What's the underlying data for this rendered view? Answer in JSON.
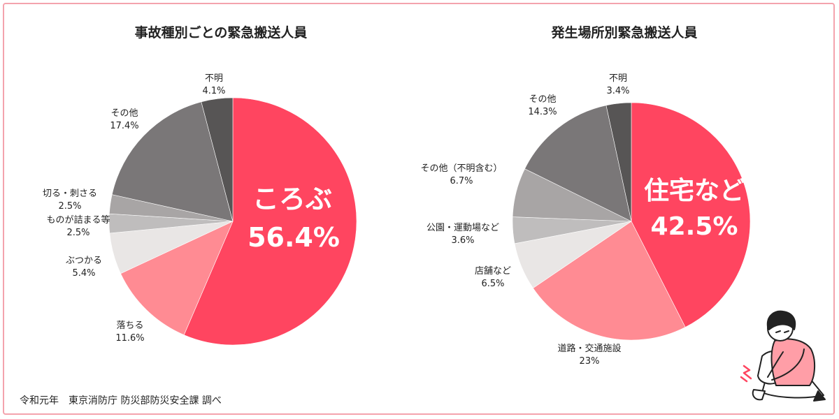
{
  "charts": {
    "left": {
      "title": "事故種別ごとの緊急搬送人員",
      "highlight": {
        "label": "ころぶ",
        "value": "56.4%"
      }
    },
    "right": {
      "title": "発生場所別緊急搬送人員",
      "highlight": {
        "label": "住宅など",
        "value": "42.5%"
      }
    }
  },
  "source": "令和元年　東京消防庁 防災部防災安全課 調べ",
  "colors": {
    "frame": "#f4a3ad",
    "primary": "#ff4560",
    "secondary": "#ff8b93",
    "light": "#e9e6e5",
    "silver": "#bfbdbd",
    "gray": "#a8a5a5",
    "dark": "#7a7778",
    "darker": "#575555"
  },
  "illustration": {
    "icon": "person-holding-injured-ankle-illustration"
  },
  "chart_data": [
    {
      "type": "pie",
      "title": "事故種別ごとの緊急搬送人員",
      "start": "top",
      "direction": "clockwise",
      "slices": [
        {
          "label": "ころぶ",
          "value": 56.4,
          "display": "56.4%",
          "color": "#ff4560"
        },
        {
          "label": "落ちる",
          "value": 11.6,
          "display": "11.6%",
          "color": "#ff8b93"
        },
        {
          "label": "ぶつかる",
          "value": 5.4,
          "display": "5.4%",
          "color": "#e9e6e5"
        },
        {
          "label": "ものが詰まる等",
          "value": 2.5,
          "display": "2.5%",
          "color": "#bfbdbd"
        },
        {
          "label": "切る・刺さる",
          "value": 2.5,
          "display": "2.5%",
          "color": "#a8a5a5"
        },
        {
          "label": "その他",
          "value": 17.4,
          "display": "17.4%",
          "color": "#7a7778"
        },
        {
          "label": "不明",
          "value": 4.1,
          "display": "4.1%",
          "color": "#575555"
        }
      ]
    },
    {
      "type": "pie",
      "title": "発生場所別緊急搬送人員",
      "start": "top",
      "direction": "clockwise",
      "slices": [
        {
          "label": "住宅など",
          "value": 42.5,
          "display": "42.5%",
          "color": "#ff4560"
        },
        {
          "label": "道路・交通施設",
          "value": 23,
          "display": "23%",
          "color": "#ff8b93"
        },
        {
          "label": "店舗など",
          "value": 6.5,
          "display": "6.5%",
          "color": "#e9e6e5"
        },
        {
          "label": "公園・運動場など",
          "value": 3.6,
          "display": "3.6%",
          "color": "#bfbdbd"
        },
        {
          "label": "その他（不明含む）",
          "value": 6.7,
          "display": "6.7%",
          "color": "#a8a5a5"
        },
        {
          "label": "その他",
          "value": 14.3,
          "display": "14.3%",
          "color": "#7a7778"
        },
        {
          "label": "不明",
          "value": 3.4,
          "display": "3.4%",
          "color": "#575555"
        }
      ]
    }
  ]
}
